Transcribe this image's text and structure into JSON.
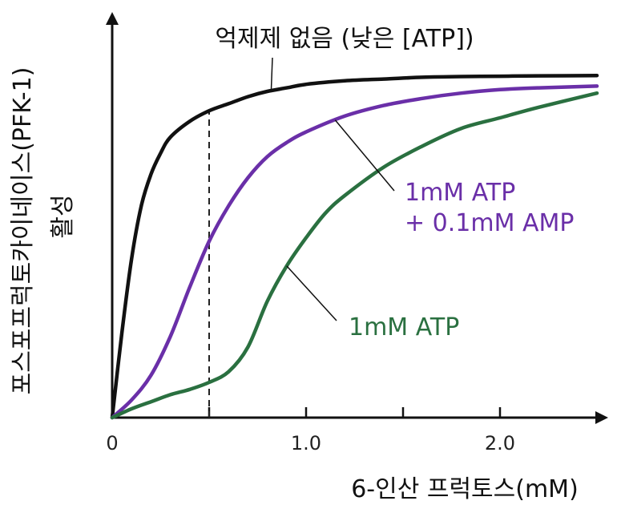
{
  "chart_data": {
    "type": "line",
    "title": "",
    "xlabel": "6-인산 프럭토스(mM)",
    "ylabel_line1": "포스포프럭토카이네이스(PFK-1)",
    "ylabel_line2": "활성",
    "xlim": [
      0,
      2.5
    ],
    "ylim": [
      0,
      1.0
    ],
    "x_ticks": [
      0,
      0.5,
      1.0,
      1.5,
      2.0
    ],
    "x_tick_labels": [
      "0",
      "",
      "1.0",
      "",
      "2.0"
    ],
    "grid": false,
    "reference_line": {
      "x": 0.5,
      "style": "dashed"
    },
    "series": [
      {
        "name": "억제제 없음 (낮은 [ATP])",
        "color": "#111111",
        "x": [
          0,
          0.05,
          0.1,
          0.15,
          0.2,
          0.25,
          0.3,
          0.4,
          0.5,
          0.6,
          0.7,
          0.8,
          0.9,
          1.0,
          1.2,
          1.4,
          1.6,
          1.8,
          2.0,
          2.2,
          2.5
        ],
        "y": [
          0,
          0.24,
          0.45,
          0.6,
          0.69,
          0.75,
          0.795,
          0.84,
          0.87,
          0.89,
          0.91,
          0.925,
          0.935,
          0.945,
          0.955,
          0.96,
          0.965,
          0.967,
          0.968,
          0.969,
          0.97
        ]
      },
      {
        "name": "1mM ATP\n+ 0.1mM AMP",
        "color": "#6a2fa8",
        "x": [
          0,
          0.1,
          0.2,
          0.3,
          0.4,
          0.5,
          0.6,
          0.7,
          0.8,
          0.9,
          1.0,
          1.2,
          1.4,
          1.6,
          1.8,
          2.0,
          2.2,
          2.5
        ],
        "y": [
          0,
          0.05,
          0.12,
          0.23,
          0.37,
          0.5,
          0.6,
          0.68,
          0.74,
          0.78,
          0.81,
          0.855,
          0.885,
          0.905,
          0.92,
          0.93,
          0.935,
          0.94
        ]
      },
      {
        "name": "1mM ATP",
        "color": "#2a7040",
        "x": [
          0,
          0.1,
          0.2,
          0.3,
          0.4,
          0.5,
          0.6,
          0.7,
          0.8,
          0.9,
          1.0,
          1.1,
          1.2,
          1.4,
          1.6,
          1.8,
          2.0,
          2.2,
          2.5
        ],
        "y": [
          0,
          0.025,
          0.045,
          0.065,
          0.08,
          0.1,
          0.13,
          0.2,
          0.33,
          0.43,
          0.51,
          0.58,
          0.63,
          0.71,
          0.77,
          0.82,
          0.85,
          0.88,
          0.92
        ]
      }
    ],
    "annotations": [
      {
        "series": 0,
        "text": "억제제 없음 (낮은 [ATP])",
        "at_x": 0.82
      },
      {
        "series": 1,
        "text": "1mM ATP\n+ 0.1mM AMP",
        "at_x": 1.15
      },
      {
        "series": 2,
        "text": "1mM ATP",
        "at_x": 0.9
      }
    ]
  }
}
